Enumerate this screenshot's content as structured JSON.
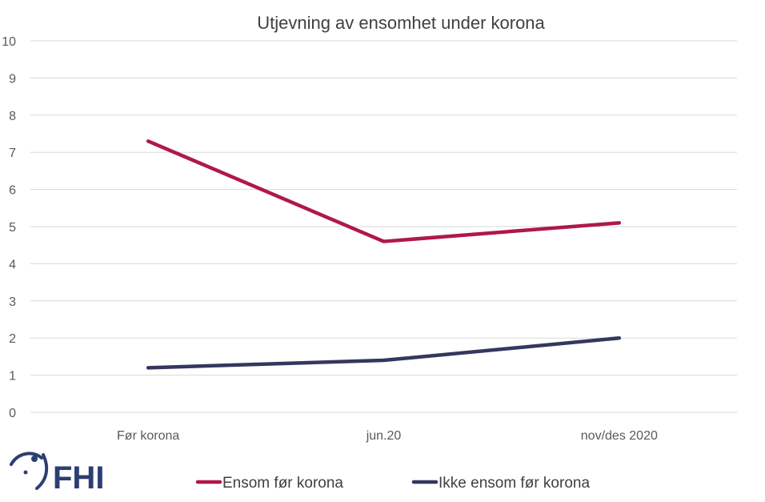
{
  "chart_data": {
    "type": "line",
    "title": "Utjevning av ensomhet under korona",
    "categories": [
      "Før korona",
      "jun.20",
      "nov/des 2020"
    ],
    "ylim": [
      0,
      10
    ],
    "yticks": [
      0,
      1,
      2,
      3,
      4,
      5,
      6,
      7,
      8,
      9,
      10
    ],
    "grid": true,
    "legend_position": "bottom",
    "series": [
      {
        "name": "Ensom før korona",
        "values": [
          7.3,
          4.6,
          5.1
        ],
        "color": "#b0184a"
      },
      {
        "name": "Ikke ensom før korona",
        "values": [
          1.2,
          1.4,
          2.0
        ],
        "color": "#34375e"
      }
    ]
  },
  "logo": {
    "text": "FHI",
    "color": "#2c3e72"
  }
}
